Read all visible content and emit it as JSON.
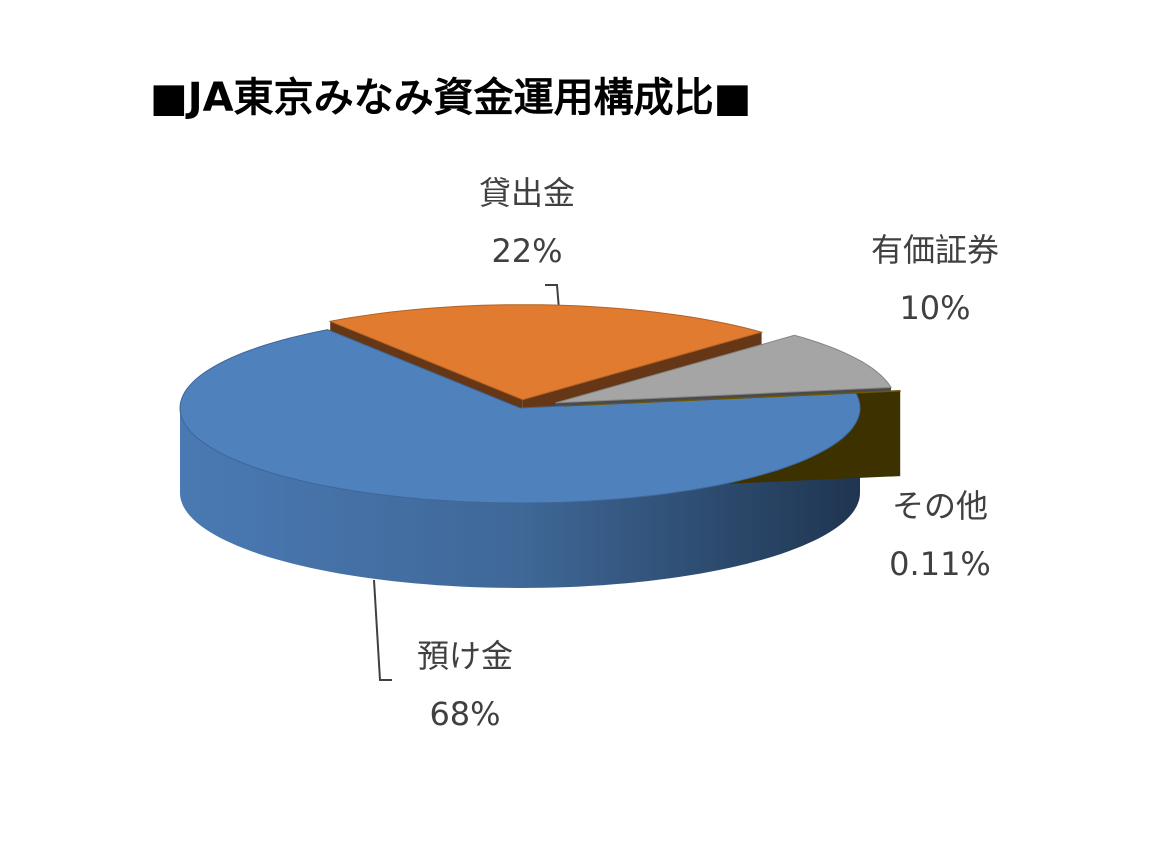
{
  "chart_data": {
    "type": "pie",
    "title": "■JA東京みなみ資金運用構成比■",
    "categories": [
      "預け金",
      "貸出金",
      "有価証券",
      "その他"
    ],
    "values": [
      68,
      22,
      10,
      0.11
    ],
    "value_labels": [
      "68%",
      "22%",
      "10%",
      "0.11%"
    ],
    "colors": [
      "#4f81bd",
      "#e07b30",
      "#a5a5a5",
      "#8a6d00"
    ]
  }
}
